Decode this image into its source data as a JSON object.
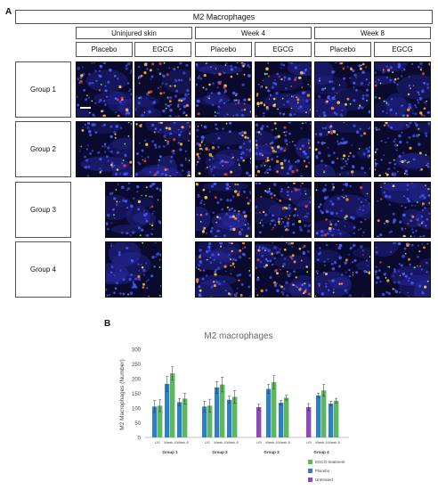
{
  "panel_a": {
    "letter": "A",
    "title": "M2 Macrophages",
    "timepoints": [
      "Uninjured skin",
      "Week 4",
      "Week 8"
    ],
    "treatments": [
      "Placebo",
      "EGCG",
      "Placebo",
      "EGCG",
      "Placebo",
      "EGCG"
    ],
    "groups": [
      "Group 1",
      "Group 2",
      "Group 3",
      "Group 4"
    ]
  },
  "panel_b": {
    "letter": "B",
    "chart_data": {
      "type": "bar",
      "title": "M2 macrophages",
      "ylabel": "M2 Macrophages (Number)",
      "ylim": [
        0,
        300
      ],
      "yticks": [
        0,
        50,
        100,
        150,
        200,
        250,
        300
      ],
      "groups": [
        {
          "name": "Group 1",
          "ticks": [
            "US",
            "Week 4",
            "Week 8"
          ],
          "bars": [
            {
              "series": "Placebo",
              "value": 105,
              "error": 20,
              "tick": 0
            },
            {
              "series": "EGCG treatment",
              "value": 108,
              "error": 20,
              "tick": 0
            },
            {
              "series": "Placebo",
              "value": 182,
              "error": 25,
              "tick": 1
            },
            {
              "series": "EGCG treatment",
              "value": 218,
              "error": 22,
              "tick": 1
            },
            {
              "series": "Placebo",
              "value": 120,
              "error": 12,
              "tick": 2
            },
            {
              "series": "EGCG treatment",
              "value": 132,
              "error": 18,
              "tick": 2
            }
          ]
        },
        {
          "name": "Group 2",
          "ticks": [
            "US",
            "Week 4",
            "Week 8"
          ],
          "bars": [
            {
              "series": "Placebo",
              "value": 105,
              "error": 18,
              "tick": 0
            },
            {
              "series": "EGCG treatment",
              "value": 108,
              "error": 22,
              "tick": 0
            },
            {
              "series": "Placebo",
              "value": 170,
              "error": 20,
              "tick": 1
            },
            {
              "series": "EGCG treatment",
              "value": 180,
              "error": 25,
              "tick": 1
            },
            {
              "series": "Placebo",
              "value": 128,
              "error": 12,
              "tick": 2
            },
            {
              "series": "EGCG treatment",
              "value": 138,
              "error": 22,
              "tick": 2
            }
          ]
        },
        {
          "name": "Group 3",
          "ticks": [
            "US",
            "Week 4",
            "Week 8"
          ],
          "bars": [
            {
              "series": "Untreated",
              "value": 103,
              "error": 10,
              "tick": 0
            },
            {
              "series": "Placebo",
              "value": 165,
              "error": 15,
              "tick": 1
            },
            {
              "series": "EGCG treatment",
              "value": 188,
              "error": 22,
              "tick": 1
            },
            {
              "series": "Placebo",
              "value": 118,
              "error": 8,
              "tick": 2
            },
            {
              "series": "EGCG treatment",
              "value": 135,
              "error": 8,
              "tick": 2
            }
          ]
        },
        {
          "name": "Group 4",
          "ticks": [
            "US",
            "Week 4",
            "Week 8"
          ],
          "bars": [
            {
              "series": "Untreated",
              "value": 103,
              "error": 12,
              "tick": 0
            },
            {
              "series": "Placebo",
              "value": 143,
              "error": 8,
              "tick": 1
            },
            {
              "series": "EGCG treatment",
              "value": 160,
              "error": 20,
              "tick": 1
            },
            {
              "series": "Placebo",
              "value": 115,
              "error": 8,
              "tick": 2
            },
            {
              "series": "EGCG treatment",
              "value": 125,
              "error": 8,
              "tick": 2
            }
          ]
        }
      ],
      "legend": [
        "EGCG treatment",
        "Placebo",
        "Untreated"
      ],
      "legend_position": "bottom-right",
      "colors": {
        "EGCG treatment": "#5cb85c",
        "Placebo": "#2f7fc8",
        "Untreated": "#8e4bb5"
      },
      "grid": false
    }
  }
}
